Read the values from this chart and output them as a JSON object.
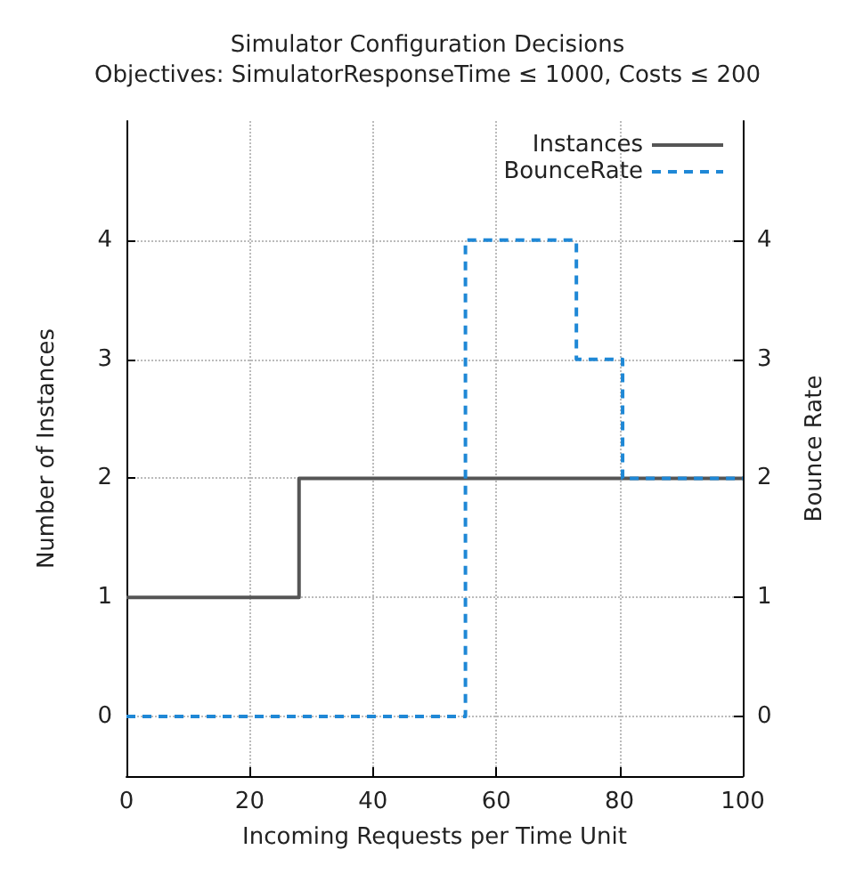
{
  "chart_data": {
    "type": "step",
    "title": "Simulator Configuration Decisions",
    "subtitle": "Objectives: SimulatorResponseTime ≤ 1000, Costs ≤ 200",
    "xlabel": "Incoming Requests per Time Unit",
    "ylabel": "Number of Instances",
    "y2label": "Bounce Rate",
    "series": [
      {
        "name": "Instances",
        "color": "#555555",
        "x": [
          0,
          28,
          100
        ],
        "values": [
          1,
          2,
          2
        ],
        "line_style": "solid"
      },
      {
        "name": "BounceRate",
        "color": "#1f88d6",
        "x": [
          0,
          55,
          73,
          80.5,
          100
        ],
        "values": [
          0,
          4,
          3,
          2,
          2
        ],
        "axis": "y2",
        "line_style": "dashed"
      }
    ],
    "xlim": [
      0,
      100
    ],
    "xticks": [
      0,
      20,
      40,
      60,
      80,
      100
    ],
    "ylim": [
      -0.5,
      5
    ],
    "yticks": [
      0,
      1,
      2,
      3,
      4
    ],
    "y2lim": [
      -0.5,
      5
    ],
    "y2ticks": [
      0,
      1,
      2,
      3,
      4
    ],
    "grid": true,
    "legend": "top right"
  }
}
